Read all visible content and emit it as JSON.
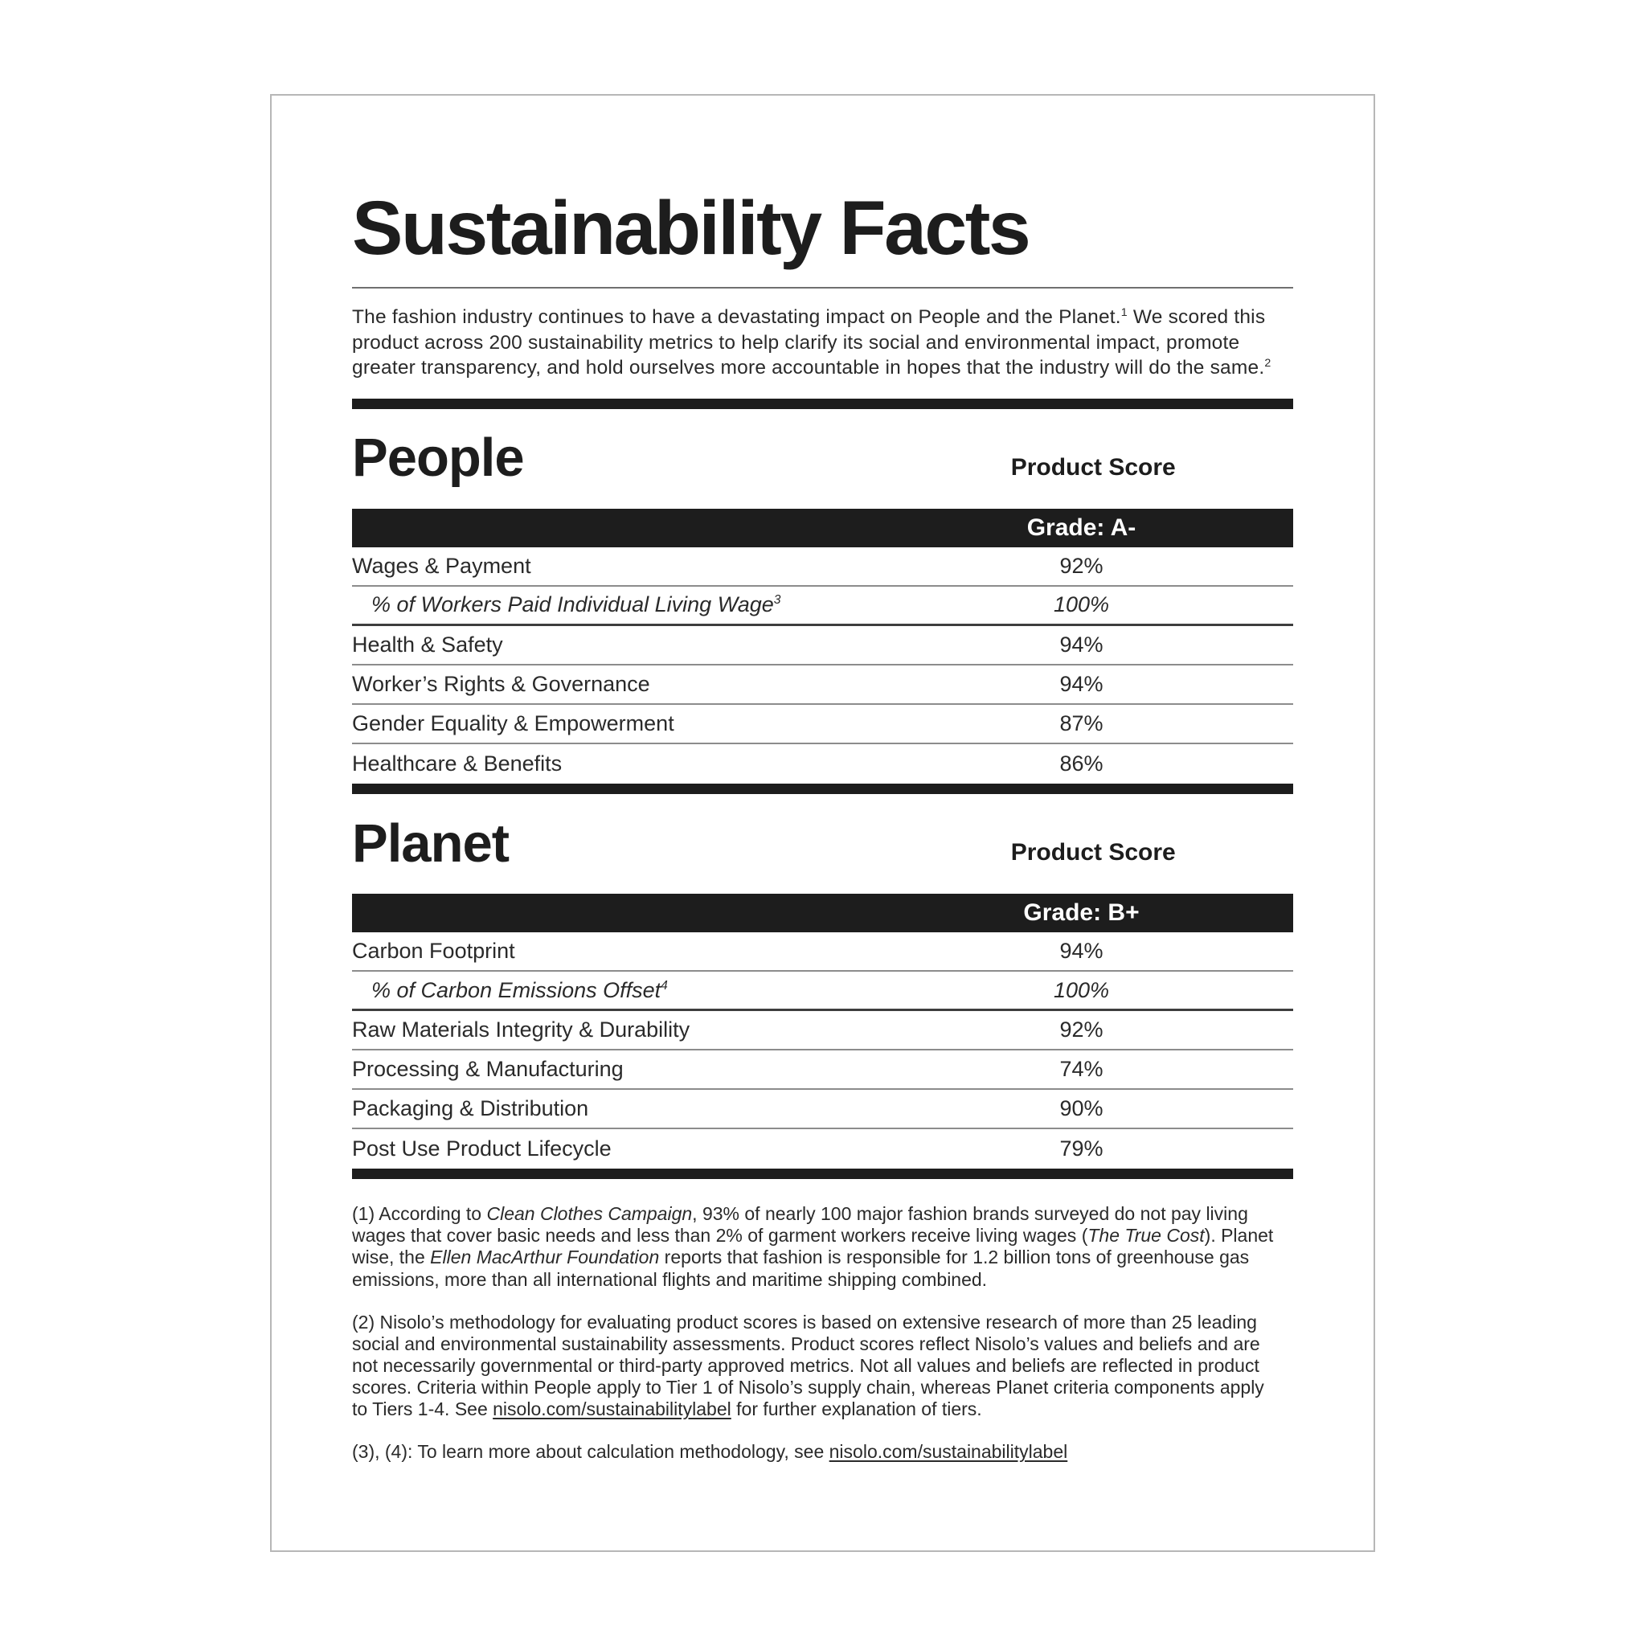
{
  "document": {
    "title": "Sustainability Facts",
    "intro_segments": [
      {
        "text": "The fashion industry continues to have a devastating impact on People and the Planet."
      },
      {
        "text": "1",
        "sup": true
      },
      {
        "text": " We scored this product across 200 sustainability metrics to help clarify its social and environmental impact, promote greater transparency, and hold ourselves more accountable in hopes that the industry will do the same."
      },
      {
        "text": "2",
        "sup": true
      }
    ]
  },
  "sections": [
    {
      "name": "People",
      "score_header": "Product Score",
      "grade": "Grade: A-",
      "rows": [
        {
          "label": "Wages & Payment",
          "value": "92%"
        },
        {
          "label": "% of Workers Paid Individual Living Wage",
          "sup": "3",
          "value": "100%",
          "sub": true
        },
        {
          "label": "Health & Safety",
          "value": "94%"
        },
        {
          "label": "Worker’s Rights & Governance",
          "value": "94%"
        },
        {
          "label": "Gender Equality & Empowerment",
          "value": "87%"
        },
        {
          "label": "Healthcare & Benefits",
          "value": "86%"
        }
      ]
    },
    {
      "name": "Planet",
      "score_header": "Product Score",
      "grade": "Grade: B+",
      "rows": [
        {
          "label": "Carbon Footprint",
          "value": "94%"
        },
        {
          "label": "% of Carbon Emissions Offset",
          "sup": "4",
          "value": "100%",
          "sub": true
        },
        {
          "label": "Raw Materials Integrity & Durability",
          "value": "92%"
        },
        {
          "label": "Processing & Manufacturing",
          "value": "74%"
        },
        {
          "label": "Packaging & Distribution",
          "value": "90%"
        },
        {
          "label": "Post Use Product Lifecycle",
          "value": "79%"
        }
      ]
    }
  ],
  "footnotes": [
    [
      {
        "text": "(1) According to "
      },
      {
        "text": "Clean Clothes Campaign",
        "italic": true
      },
      {
        "text": ", 93% of nearly 100 major fashion brands surveyed do not pay living wages that cover basic needs and less than 2% of garment workers receive living wages ("
      },
      {
        "text": "The True Cost",
        "italic": true
      },
      {
        "text": "). Planet wise, the "
      },
      {
        "text": "Ellen MacArthur Foundation",
        "italic": true
      },
      {
        "text": " reports that fashion is responsible for 1.2 billion tons of greenhouse gas emissions, more than all international flights and maritime shipping combined."
      }
    ],
    [
      {
        "text": "(2) Nisolo’s methodology for evaluating product scores is based on extensive research of more than 25 leading social and environmental sustainability assessments. Product scores reflect Nisolo’s values and beliefs and are not necessarily governmental or third-party approved metrics. Not all values and beliefs are reflected in product scores. Criteria within People apply to Tier 1 of Nisolo’s supply chain, whereas Planet criteria components apply to Tiers 1-4. See "
      },
      {
        "text": "nisolo.com/sustainabilitylabel",
        "link": true
      },
      {
        "text": " for further explanation of tiers."
      }
    ],
    [
      {
        "text": "(3), (4): To learn more about calculation methodology, see "
      },
      {
        "text": "nisolo.com/sustainabilitylabel",
        "link": true
      }
    ]
  ],
  "colors": {
    "bar_black": "#1d1d1d",
    "text": "#2a2a2a",
    "row_separator": "#8c8c8c",
    "sub_row_separator": "#3e3e3e",
    "page_border": "#b7b7b7",
    "grade_text": "#ffffff"
  }
}
